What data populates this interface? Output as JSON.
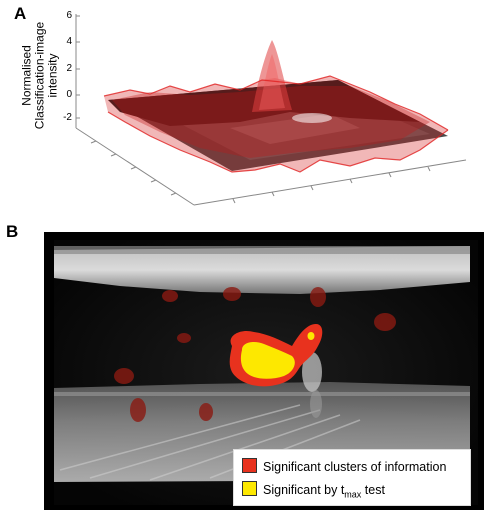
{
  "panelA": {
    "label": "A",
    "ylabel_line1": "Normalised",
    "ylabel_line2": "Classification-image",
    "ylabel_line3": "intensity",
    "yticks": [
      "6",
      "4",
      "2",
      "0",
      "-2"
    ]
  },
  "panelB": {
    "label": "B",
    "legend": {
      "item1": "Significant clusters of information",
      "item2_prefix": "Significant by t",
      "item2_sub": "max",
      "item2_suffix": " test"
    }
  },
  "colors": {
    "cluster": "#e8321e",
    "tmax": "#fde800",
    "surface_red": "#d22020"
  }
}
